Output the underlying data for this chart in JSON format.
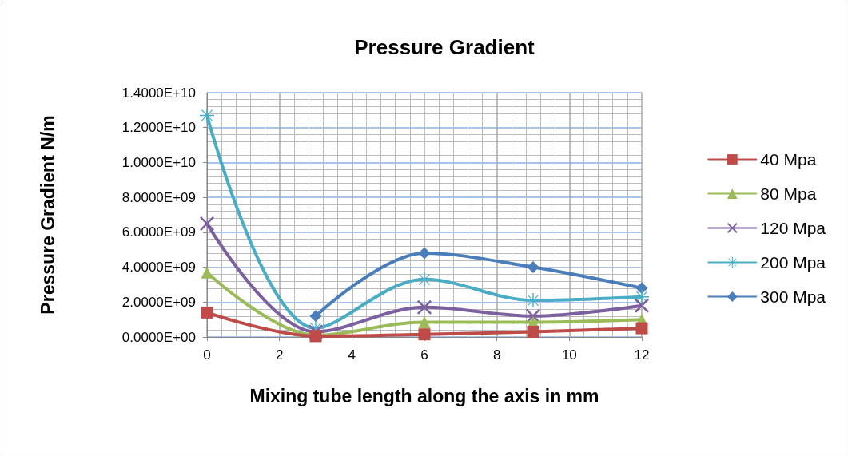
{
  "chart_data": {
    "type": "line",
    "title": "Pressure Gradient",
    "xlabel": "Mixing tube length along the axis in mm",
    "ylabel": "Pressure Gradient N/m",
    "x": [
      0,
      3,
      6,
      9,
      12
    ],
    "series": [
      {
        "name": "40 Mpa",
        "color": "#be4b48",
        "marker": "square",
        "values": [
          1400000000.0,
          50000000.0,
          150000000.0,
          300000000.0,
          500000000.0
        ]
      },
      {
        "name": "80 Mpa",
        "color": "#9bbb59",
        "marker": "triangle",
        "values": [
          3700000000.0,
          100000000.0,
          850000000.0,
          850000000.0,
          1000000000.0
        ]
      },
      {
        "name": "120 Mpa",
        "color": "#7d60a0",
        "marker": "cross",
        "values": [
          6500000000.0,
          300000000.0,
          1700000000.0,
          1200000000.0,
          1800000000.0
        ]
      },
      {
        "name": "200 Mpa",
        "color": "#4bacc6",
        "marker": "star",
        "values": [
          12700000000.0,
          500000000.0,
          3300000000.0,
          2100000000.0,
          2300000000.0
        ]
      },
      {
        "name": "300 Mpa",
        "color": "#4a7ebb",
        "marker": "diamond",
        "values": [
          null,
          1200000000.0,
          4800000000.0,
          4000000000.0,
          2800000000.0
        ]
      }
    ],
    "xlim": [
      0,
      12
    ],
    "xticks": [
      0,
      2,
      4,
      6,
      8,
      10,
      12
    ],
    "ylim": [
      0,
      14000000000.0
    ],
    "yticks": [
      {
        "value": 0,
        "label": "0.0000E+00"
      },
      {
        "value": 2000000000.0,
        "label": "2.0000E+09"
      },
      {
        "value": 4000000000.0,
        "label": "4.0000E+09"
      },
      {
        "value": 6000000000.0,
        "label": "6.0000E+09"
      },
      {
        "value": 8000000000.0,
        "label": "8.0000E+09"
      },
      {
        "value": 10000000000.0,
        "label": "1.0000E+10"
      },
      {
        "value": 12000000000.0,
        "label": "1.2000E+10"
      },
      {
        "value": 14000000000.0,
        "label": "1.4000E+10"
      }
    ],
    "grid": true,
    "legend": "right",
    "line_style": "solid"
  }
}
